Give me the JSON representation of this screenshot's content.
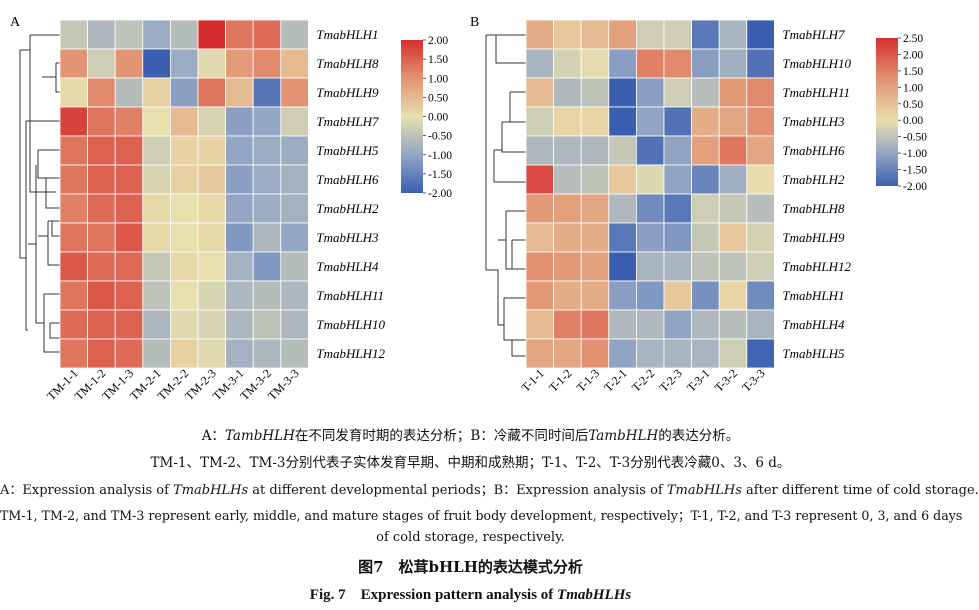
{
  "figure": {
    "caption_cn_line1": {
      "prefix": "A：",
      "gene1": "TambHLH",
      "mid": "在不同发育时期的表达分析；B：冷藏不同时间后",
      "gene2": "TambHLH",
      "suffix": "的表达分析。"
    },
    "caption_cn_line2": "TM-1、TM-2、TM-3分别代表子实体发育早期、中期和成熟期；T-1、T-2、T-3分别代表冷藏0、3、6 d。",
    "caption_en_line1": {
      "prefix": "A：Expression analysis of ",
      "gene1": "TmabHLHs",
      "mid": " at different developmental periods；B：Expression analysis of ",
      "gene2": "TmabHLHs",
      "suffix": " after different time of cold storage."
    },
    "caption_en_line2": "TM-1, TM-2, and TM-3 represent early, middle, and mature stages of fruit body development, respectively；T-1, T-2, and T-3 represent 0, 3, and 6 days",
    "caption_en_line3": "of cold storage, respectively.",
    "title_cn": "图7　松茸bHLH的表达模式分析",
    "title_en_prefix": "Fig. 7　Expression pattern analysis of ",
    "title_en_gene": "TmabHLHs"
  },
  "colors": {
    "low": "#3a5fb0",
    "mid": "#e8dfae",
    "high": "#d62e2e"
  },
  "chart_data": [
    {
      "type": "heatmap",
      "panel_label": "A",
      "columns": [
        "TM-1-1",
        "TM-1-2",
        "TM-1-3",
        "TM-2-1",
        "TM-2-2",
        "TM-2-3",
        "TM-3-1",
        "TM-3-2",
        "TM-3-3"
      ],
      "rows": [
        "TmabHLH1",
        "TmabHLH8",
        "TmabHLH9",
        "TmabHLH7",
        "TmabHLH5",
        "TmabHLH6",
        "TmabHLH2",
        "TmabHLH3",
        "TmabHLH4",
        "TmabHLH11",
        "TmabHLH10",
        "TmabHLH12"
      ],
      "values": [
        [
          -0.4,
          -0.7,
          -0.5,
          -0.9,
          -0.6,
          2.0,
          1.3,
          1.4,
          -0.6
        ],
        [
          1.0,
          -0.3,
          1.0,
          -2.0,
          -0.9,
          -0.1,
          0.9,
          1.1,
          0.5
        ],
        [
          0.1,
          1.1,
          -0.6,
          0.2,
          -1.1,
          1.3,
          0.5,
          -1.7,
          1.0
        ],
        [
          1.8,
          1.3,
          1.2,
          0.0,
          0.5,
          -0.2,
          -1.1,
          -1.0,
          -0.3
        ],
        [
          1.3,
          1.5,
          1.5,
          -0.3,
          0.2,
          0.2,
          -1.0,
          -0.9,
          -0.9
        ],
        [
          1.3,
          1.5,
          1.5,
          -0.2,
          0.2,
          0.3,
          -1.1,
          -0.9,
          -0.8
        ],
        [
          1.2,
          1.4,
          1.5,
          0.1,
          0.0,
          0.1,
          -1.0,
          -0.9,
          -0.8
        ],
        [
          1.3,
          1.3,
          1.6,
          0.1,
          0.0,
          0.1,
          -1.2,
          -0.7,
          -1.0
        ],
        [
          1.6,
          1.4,
          1.4,
          -0.4,
          0.1,
          0.0,
          -0.8,
          -1.2,
          -0.6
        ],
        [
          1.3,
          1.6,
          1.5,
          -0.5,
          0.0,
          -0.2,
          -0.7,
          -0.6,
          -0.7
        ],
        [
          1.4,
          1.5,
          1.5,
          -0.7,
          -0.1,
          -0.2,
          -0.7,
          -0.5,
          -0.7
        ],
        [
          1.3,
          1.5,
          1.4,
          -0.6,
          0.2,
          -0.1,
          -0.8,
          -0.7,
          -0.6
        ]
      ],
      "colorbar": {
        "min": -2.0,
        "max": 2.0,
        "ticks": [
          "2.00",
          "1.50",
          "1.00",
          "0.50",
          "0.00",
          "-0.50",
          "-1.00",
          "-1.50",
          "-2.00"
        ]
      }
    },
    {
      "type": "heatmap",
      "panel_label": "B",
      "columns": [
        "T-1-1",
        "T-1-2",
        "T-1-3",
        "T-2-1",
        "T-2-2",
        "T-2-3",
        "T-3-1",
        "T-3-2",
        "T-3-3"
      ],
      "rows": [
        "TmabHLH7",
        "TmabHLH10",
        "TmabHLH11",
        "TmabHLH3",
        "TmabHLH6",
        "TmabHLH2",
        "TmabHLH8",
        "TmabHLH9",
        "TmabHLH12",
        "TmabHLH1",
        "TmabHLH4",
        "TmabHLH5"
      ],
      "values": [
        [
          1.0,
          0.6,
          0.8,
          1.2,
          -0.1,
          -0.1,
          -1.6,
          -0.6,
          -2.0
        ],
        [
          -0.6,
          0.0,
          0.2,
          -1.0,
          1.6,
          1.5,
          -1.0,
          -0.7,
          -1.7
        ],
        [
          0.8,
          -0.5,
          -0.3,
          -2.0,
          -1.0,
          -0.1,
          -0.4,
          1.3,
          1.5
        ],
        [
          -0.1,
          0.4,
          0.4,
          -2.0,
          -0.9,
          -1.7,
          1.0,
          1.1,
          1.4
        ],
        [
          -0.5,
          -0.5,
          -0.5,
          -0.2,
          -1.7,
          -0.9,
          1.2,
          1.7,
          1.1
        ],
        [
          2.2,
          -0.4,
          -0.3,
          0.6,
          0.1,
          -0.9,
          -1.4,
          -0.7,
          0.3
        ],
        [
          1.3,
          1.2,
          1.1,
          -0.5,
          -1.3,
          -1.6,
          -0.1,
          -0.2,
          -0.4
        ],
        [
          0.8,
          1.0,
          1.0,
          -1.6,
          -1.0,
          -1.1,
          -0.2,
          0.6,
          0.0
        ],
        [
          1.4,
          1.3,
          1.2,
          -2.0,
          -0.6,
          -0.6,
          -0.3,
          -0.3,
          -0.1
        ],
        [
          1.3,
          1.0,
          1.0,
          -1.0,
          -1.1,
          0.6,
          -1.2,
          0.4,
          -1.3
        ],
        [
          0.8,
          1.6,
          1.7,
          -0.5,
          -0.5,
          -0.9,
          -0.5,
          -0.4,
          -0.6
        ],
        [
          1.1,
          1.1,
          1.4,
          -0.9,
          -0.6,
          -0.6,
          -0.6,
          -0.1,
          -1.9
        ]
      ],
      "colorbar": {
        "min": -2.0,
        "max": 2.5,
        "ticks": [
          "2.50",
          "2.00",
          "1.50",
          "1.00",
          "0.50",
          "0.00",
          "-0.50",
          "-1.00",
          "-1.50",
          "-2.00"
        ]
      }
    }
  ]
}
